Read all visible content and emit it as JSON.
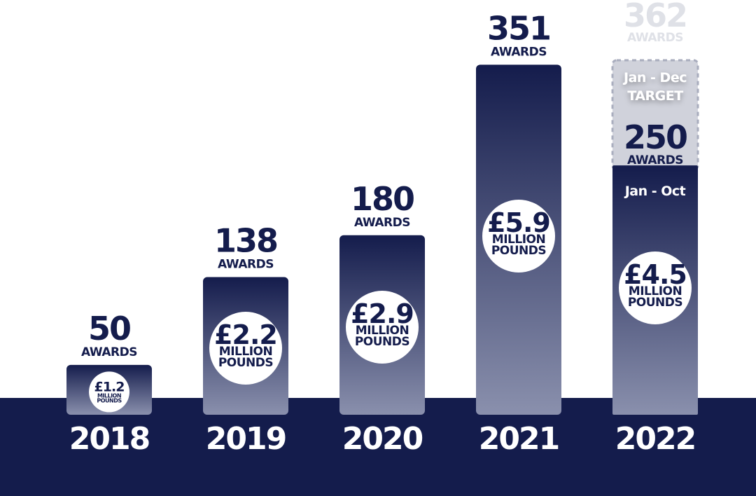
{
  "colors": {
    "navy": "#141c4c",
    "bar_bottom": "#8a90ad",
    "white": "#ffffff",
    "target_fill": "#d0d2db",
    "target_border": "#a9adbe",
    "ghost": "#dfe1e7"
  },
  "chart_data": {
    "type": "bar",
    "categories": [
      "2018",
      "2019",
      "2020",
      "2021",
      "2022"
    ],
    "values": [
      50,
      138,
      180,
      351,
      250
    ],
    "value_unit_label": "AWARDS",
    "money": [
      "£1.2",
      "£2.2",
      "£2.9",
      "£5.9",
      "£4.5"
    ],
    "money_unit_line1": "MILLION",
    "money_unit_line2": "POUNDS",
    "ylim": [
      0,
      362
    ],
    "title": "",
    "xlabel": "",
    "ylabel": "",
    "target": {
      "category": "2022",
      "value": 362,
      "label": "AWARDS",
      "period_line1": "Jan - Dec",
      "period_line2": "TARGET",
      "actual_period": "Jan - Oct"
    }
  }
}
